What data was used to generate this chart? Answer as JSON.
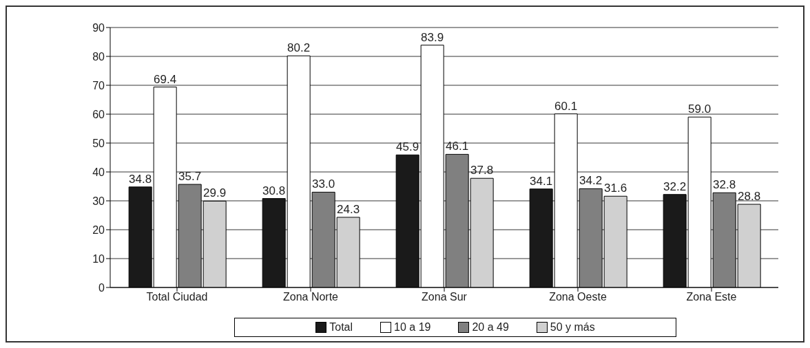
{
  "chart_data": {
    "type": "bar",
    "categories": [
      "Total Ciudad",
      "Zona Norte",
      "Zona Sur",
      "Zona Oeste",
      "Zona Este"
    ],
    "series": [
      {
        "name": "Total",
        "color": "#1a1a1a",
        "values": [
          34.8,
          30.8,
          45.9,
          34.1,
          32.2
        ],
        "value_labels": [
          "34.8",
          "30.8",
          "45.9",
          "34.1",
          "32.2"
        ]
      },
      {
        "name": "10 a 19",
        "color": "#ffffff",
        "values": [
          69.4,
          80.2,
          83.9,
          60.1,
          59.0
        ],
        "value_labels": [
          "69.4",
          "80.2",
          "83.9",
          "60.1",
          "59.0"
        ]
      },
      {
        "name": "20 a 49",
        "color": "#808080",
        "values": [
          35.7,
          33.0,
          46.1,
          34.2,
          32.8
        ],
        "value_labels": [
          "35.7",
          "33.0",
          "46.1",
          "34.2",
          "32.8"
        ]
      },
      {
        "name": "50 y más",
        "color": "#d0d0d0",
        "values": [
          29.9,
          24.3,
          37.8,
          31.6,
          28.8
        ],
        "value_labels": [
          "29.9",
          "24.3",
          "37.8",
          "31.6",
          "28.8"
        ]
      }
    ],
    "ylim": [
      0,
      90
    ],
    "yticks": [
      0,
      10,
      20,
      30,
      40,
      50,
      60,
      70,
      80,
      90
    ],
    "grid": "y",
    "legend": "bottom"
  }
}
